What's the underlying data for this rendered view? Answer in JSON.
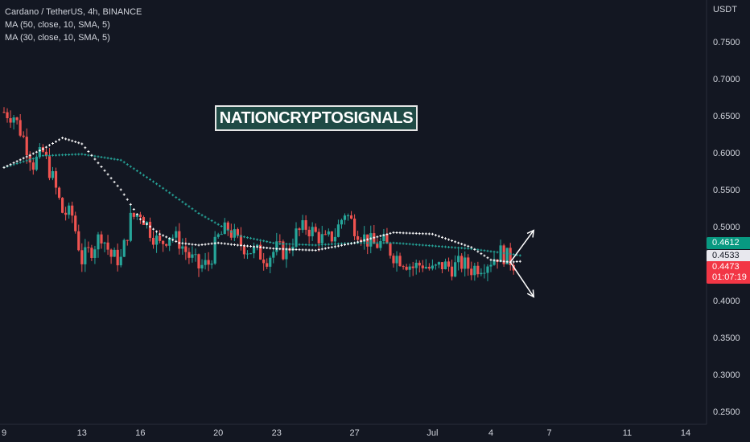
{
  "header": {
    "symbol_line": "Cardano / TetherUS, 4h, BINANCE",
    "ma1_line": "MA (50, close, 10, SMA, 5)",
    "ma2_line": "MA (30, close, 10, SMA, 5)"
  },
  "watermark": "NATIONCRYPTOSIGNALS",
  "price_tags": {
    "ma_green": "0.4612",
    "ma_white": "0.4533",
    "last_price": "0.4473",
    "countdown": "01:07:19"
  },
  "colors": {
    "background": "#131722",
    "up": "#26a69a",
    "down": "#ef5350",
    "ma_green": "#26a69a",
    "ma_white": "#ffffff",
    "text": "#d1d4dc",
    "arrow": "#ffffff"
  },
  "chart_data": {
    "type": "candlestick",
    "y_unit_label": "USDT",
    "ylim": [
      0.235,
      0.775
    ],
    "y_ticks": [
      0.75,
      0.7,
      0.65,
      0.6,
      0.55,
      0.5,
      0.45,
      0.4,
      0.35,
      0.3,
      0.25
    ],
    "y_tick_labels": [
      "0.7500",
      "0.7000",
      "0.6500",
      "0.6000",
      "0.5500",
      "0.5000",
      "0.4500",
      "0.4000",
      "0.3500",
      "0.3000",
      "0.2500"
    ],
    "x_labels": [
      "9",
      "13",
      "16",
      "20",
      "23",
      "27",
      "Jul",
      "4",
      "7",
      "11",
      "14"
    ],
    "x_label_days": [
      0,
      4,
      7,
      11,
      14,
      18,
      22,
      25,
      28,
      32,
      35
    ],
    "grid": false,
    "candles_per_day": 6,
    "close_path": [
      [
        0.0,
        0.655
      ],
      [
        0.5,
        0.65
      ],
      [
        1.0,
        0.62
      ],
      [
        1.5,
        0.585
      ],
      [
        2.0,
        0.6
      ],
      [
        2.5,
        0.565
      ],
      [
        3.0,
        0.52
      ],
      [
        3.5,
        0.515
      ],
      [
        4.0,
        0.455
      ],
      [
        4.5,
        0.47
      ],
      [
        5.0,
        0.49
      ],
      [
        5.5,
        0.46
      ],
      [
        6.0,
        0.455
      ],
      [
        6.5,
        0.51
      ],
      [
        7.0,
        0.52
      ],
      [
        7.5,
        0.495
      ],
      [
        8.0,
        0.475
      ],
      [
        8.5,
        0.49
      ],
      [
        9.0,
        0.48
      ],
      [
        9.5,
        0.46
      ],
      [
        10.0,
        0.445
      ],
      [
        10.5,
        0.45
      ],
      [
        11.0,
        0.485
      ],
      [
        11.5,
        0.498
      ],
      [
        12.0,
        0.48
      ],
      [
        12.5,
        0.47
      ],
      [
        13.0,
        0.465
      ],
      [
        13.5,
        0.458
      ],
      [
        14.0,
        0.47
      ],
      [
        14.5,
        0.465
      ],
      [
        15.0,
        0.49
      ],
      [
        15.5,
        0.5
      ],
      [
        16.0,
        0.49
      ],
      [
        16.5,
        0.48
      ],
      [
        17.0,
        0.49
      ],
      [
        17.5,
        0.52
      ],
      [
        18.0,
        0.5
      ],
      [
        18.5,
        0.485
      ],
      [
        19.0,
        0.475
      ],
      [
        19.5,
        0.478
      ],
      [
        20.0,
        0.462
      ],
      [
        20.5,
        0.455
      ],
      [
        21.0,
        0.445
      ],
      [
        21.5,
        0.45
      ],
      [
        22.0,
        0.44
      ],
      [
        22.5,
        0.448
      ],
      [
        23.0,
        0.445
      ],
      [
        23.5,
        0.45
      ],
      [
        24.0,
        0.443
      ],
      [
        24.5,
        0.448
      ],
      [
        25.0,
        0.455
      ],
      [
        25.5,
        0.465
      ],
      [
        26.0,
        0.455
      ],
      [
        26.3,
        0.447
      ]
    ],
    "series": [
      {
        "name": "MA (50, close, 10, SMA, 5)",
        "x": [
          0,
          2,
          4,
          6,
          8,
          10,
          12,
          14,
          16,
          18,
          20,
          22,
          24,
          26,
          26.5
        ],
        "values": [
          0.58,
          0.596,
          0.598,
          0.59,
          0.555,
          0.518,
          0.488,
          0.477,
          0.475,
          0.478,
          0.478,
          0.474,
          0.47,
          0.463,
          0.461
        ]
      },
      {
        "name": "MA (30, close, 10, SMA, 5)",
        "x": [
          0,
          2,
          3,
          4,
          6,
          7,
          8,
          9,
          10,
          11,
          12,
          14,
          16,
          18,
          20,
          22,
          24,
          25,
          26,
          26.5
        ],
        "values": [
          0.58,
          0.605,
          0.62,
          0.612,
          0.55,
          0.51,
          0.49,
          0.478,
          0.475,
          0.478,
          0.475,
          0.47,
          0.468,
          0.478,
          0.492,
          0.49,
          0.472,
          0.455,
          0.452,
          0.453
        ]
      }
    ],
    "annotation_arrows": [
      {
        "from": [
          26.0,
          0.452
        ],
        "to": [
          27.2,
          0.495
        ]
      },
      {
        "from": [
          26.0,
          0.452
        ],
        "to": [
          27.2,
          0.405
        ]
      }
    ]
  }
}
